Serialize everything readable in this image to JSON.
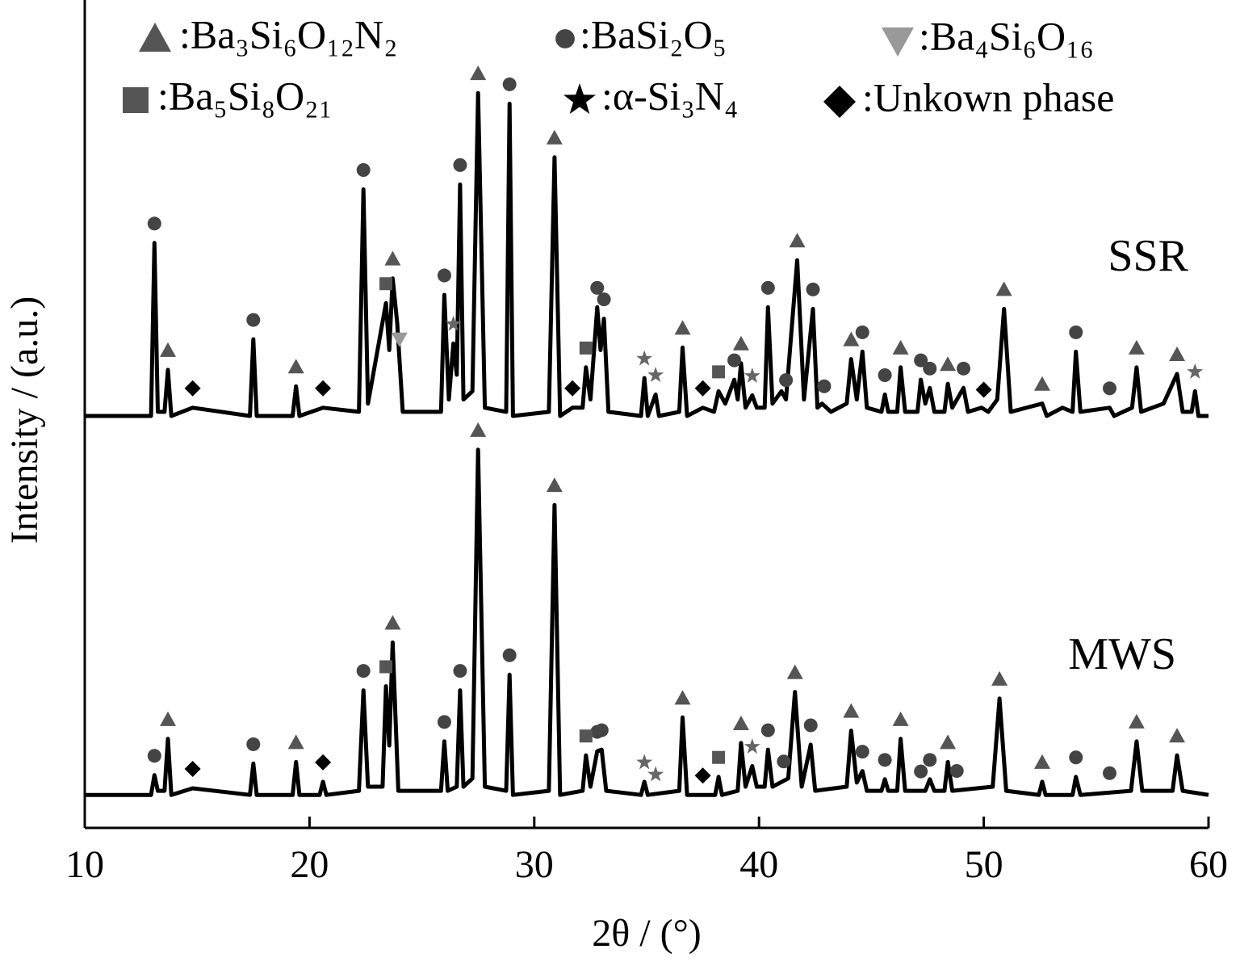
{
  "chart_data": {
    "type": "line",
    "xlabel": "2θ / (°)",
    "ylabel": "Intensity / (a.u.)",
    "xlim": [
      10,
      60
    ],
    "xticks": [
      10,
      20,
      30,
      40,
      50,
      60
    ],
    "ylim": [
      0,
      100
    ],
    "legend": "top",
    "series": [
      {
        "name": "SSR",
        "color": "#000000",
        "x": [
          10,
          12.95,
          13.1,
          13.25,
          13.55,
          13.7,
          13.85,
          14.8,
          17.35,
          17.5,
          17.65,
          19.25,
          19.4,
          19.55,
          20.6,
          22.2,
          22.4,
          22.6,
          23.4,
          23.55,
          23.7,
          23.9,
          24.15,
          25.85,
          26.0,
          26.2,
          26.4,
          26.55,
          26.7,
          26.85,
          27.25,
          27.5,
          27.8,
          28.75,
          28.9,
          29.05,
          30.65,
          30.9,
          31.15,
          31.7,
          32.15,
          32.3,
          32.5,
          32.8,
          32.95,
          33.1,
          33.3,
          34.75,
          34.9,
          35.05,
          35.4,
          35.55,
          36.45,
          36.6,
          36.8,
          37.5,
          38.0,
          38.2,
          38.5,
          38.9,
          39.05,
          39.2,
          39.4,
          39.7,
          39.9,
          40.25,
          40.4,
          40.6,
          41.0,
          41.2,
          41.7,
          42.0,
          42.4,
          42.6,
          42.8,
          43.2,
          43.9,
          44.1,
          44.35,
          44.6,
          44.8,
          45.45,
          45.6,
          45.75,
          46.15,
          46.3,
          46.5,
          47.05,
          47.2,
          47.4,
          47.6,
          47.8,
          48.25,
          48.4,
          48.6,
          49.1,
          49.3,
          49.9,
          50.2,
          50.6,
          50.9,
          51.2,
          52.6,
          52.8,
          53.5,
          53.95,
          54.1,
          54.3,
          55.6,
          55.8,
          56.6,
          56.8,
          57.0,
          58.0,
          58.6,
          58.85,
          59.25,
          59.4,
          59.55,
          60
        ],
        "values": [
          50,
          50,
          71,
          50.5,
          50.5,
          55.6,
          50,
          51,
          50,
          59.3,
          50,
          50,
          53.6,
          50,
          51,
          50.5,
          77.5,
          51.5,
          63.7,
          58,
          66.7,
          61.3,
          50.5,
          50.5,
          64.7,
          52,
          58.8,
          55,
          78.1,
          52,
          53,
          89.2,
          51,
          50.5,
          87.9,
          50,
          50.5,
          81.4,
          50,
          51,
          51,
          55.9,
          52,
          63.2,
          58,
          61.8,
          50.5,
          50,
          54.6,
          50,
          52.6,
          50,
          50.5,
          58.3,
          50,
          51,
          50.5,
          53,
          51.5,
          54.4,
          52,
          56.4,
          51,
          52.5,
          51,
          51,
          63.2,
          51.5,
          53,
          52,
          68.9,
          52,
          63,
          51,
          51.5,
          50.5,
          51.5,
          56.9,
          52,
          57.8,
          51,
          50.5,
          52.6,
          50.5,
          50.5,
          55.9,
          50.5,
          50.5,
          54.4,
          51.5,
          53.4,
          50.5,
          50.5,
          53.9,
          51,
          53.4,
          50.5,
          51,
          50.5,
          52,
          63,
          50.5,
          51.5,
          50,
          51,
          50.5,
          57.8,
          50.5,
          51,
          50,
          51,
          55.9,
          50.5,
          51.5,
          55.1,
          50.5,
          50.5,
          53,
          50,
          50
        ]
      },
      {
        "name": "MWS",
        "color": "#000000",
        "x": [
          10,
          12.95,
          13.1,
          13.25,
          13.55,
          13.7,
          13.85,
          14.8,
          17.35,
          17.5,
          17.65,
          19.25,
          19.4,
          19.55,
          20.45,
          20.6,
          20.75,
          22.2,
          22.4,
          22.6,
          23.25,
          23.4,
          23.55,
          23.7,
          23.95,
          25.85,
          26.0,
          26.15,
          26.55,
          26.7,
          26.85,
          27.25,
          27.5,
          27.8,
          28.75,
          28.9,
          29.05,
          30.65,
          30.9,
          31.15,
          32.15,
          32.3,
          32.5,
          32.8,
          33.0,
          33.2,
          34.75,
          34.9,
          35.05,
          36.45,
          36.6,
          36.8,
          38.05,
          38.2,
          38.35,
          39.05,
          39.2,
          39.4,
          39.7,
          39.9,
          40.25,
          40.4,
          40.6,
          41.3,
          41.6,
          41.9,
          42.3,
          42.5,
          43.9,
          44.1,
          44.35,
          44.6,
          44.8,
          45.45,
          45.6,
          45.75,
          46.15,
          46.3,
          46.5,
          47.4,
          47.6,
          47.8,
          48.25,
          48.4,
          48.6,
          50.4,
          50.7,
          51.0,
          52.45,
          52.6,
          52.75,
          53.95,
          54.1,
          54.3,
          56.55,
          56.8,
          57.05,
          58.4,
          58.6,
          58.85,
          60
        ],
        "values": [
          4,
          4,
          6.4,
          4.5,
          4.5,
          10.8,
          4,
          4.8,
          4,
          7.8,
          4,
          4,
          8,
          4,
          4,
          5.6,
          4,
          4.5,
          16.7,
          5,
          5,
          17.2,
          10,
          22.5,
          4.5,
          4.5,
          10.5,
          4.5,
          5,
          16.7,
          5,
          6,
          45.9,
          5,
          4.5,
          18.6,
          4,
          4.5,
          39.2,
          4,
          4.5,
          8.8,
          5,
          9.3,
          9.5,
          4.5,
          4,
          5.6,
          4,
          4.5,
          13.4,
          4,
          4,
          6.2,
          4,
          4.5,
          10.3,
          5,
          7.5,
          5,
          5,
          9.5,
          5,
          6,
          16.5,
          5,
          10.1,
          4.5,
          5,
          11.8,
          5.5,
          6.9,
          4.5,
          4.5,
          5.9,
          4.5,
          4.5,
          10.8,
          4.5,
          4.5,
          5.9,
          4.5,
          4.5,
          8,
          4.5,
          5,
          15.7,
          4.5,
          4,
          5.6,
          4,
          4,
          6.2,
          4,
          4.5,
          10.5,
          4.5,
          4.5,
          8.8,
          4.5,
          4
        ]
      }
    ],
    "phases": [
      {
        "name": ":Ba₃Si₆O₁₂N₂",
        "symbol": "triangle-up",
        "color": "#555555",
        "peaks": [
          [
            13.7,
            19.4,
            23.7,
            27.5,
            30.9,
            36.6,
            39.2,
            41.7,
            44.1,
            46.3,
            48.4,
            50.9,
            52.6,
            56.8,
            58.6
          ],
          [
            13.7,
            19.4,
            23.7,
            27.5,
            30.9,
            36.6,
            39.2,
            41.6,
            44.1,
            46.3,
            48.4,
            50.7,
            52.6,
            56.8,
            58.6
          ]
        ]
      },
      {
        "name": ":BaSi₂O₅",
        "symbol": "circle",
        "color": "#444444",
        "peaks": [
          [
            13.1,
            17.5,
            22.4,
            26.0,
            26.7,
            28.9,
            32.8,
            33.1,
            38.9,
            40.4,
            41.2,
            42.4,
            42.9,
            44.6,
            45.6,
            47.2,
            47.6,
            49.1,
            54.1,
            55.6
          ],
          [
            13.1,
            17.5,
            22.4,
            26.0,
            26.7,
            28.9,
            32.8,
            33.0,
            40.4,
            41.1,
            42.3,
            44.6,
            45.6,
            47.2,
            47.6,
            48.8,
            54.1,
            55.6
          ]
        ]
      },
      {
        "name": ":Ba₄Si₆O₁₆",
        "symbol": "triangle-down",
        "color": "#999999",
        "peaks": [
          [
            24.0
          ],
          []
        ]
      },
      {
        "name": ":Ba₅Si₈O₂₁",
        "symbol": "square",
        "color": "#555555",
        "peaks": [
          [
            23.4,
            32.3,
            38.2
          ],
          [
            23.4,
            32.3,
            38.2
          ]
        ]
      },
      {
        "name": ":α-Si₃N₄",
        "symbol": "star",
        "color": "#666666",
        "peaks": [
          [
            26.4,
            34.9,
            35.4,
            39.7,
            59.4
          ],
          [
            34.9,
            35.4,
            39.7
          ]
        ]
      },
      {
        "name": ":Unkown phase",
        "symbol": "diamond",
        "color": "#000000",
        "peaks": [
          [
            14.8,
            20.6,
            31.7,
            37.5,
            50.0
          ],
          [
            14.8,
            20.6,
            37.5
          ]
        ]
      }
    ]
  }
}
